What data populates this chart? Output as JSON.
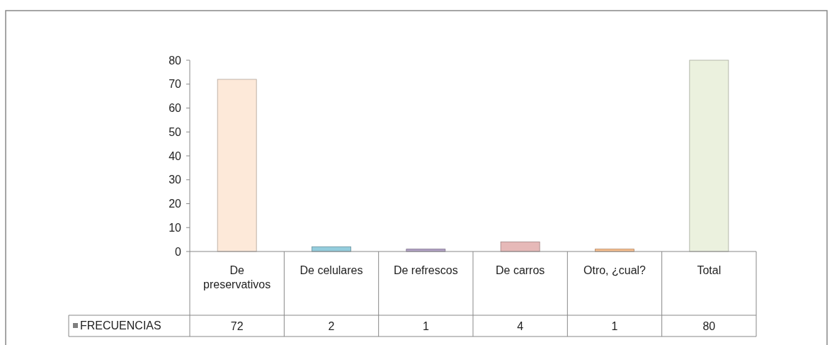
{
  "chart_data": {
    "type": "bar",
    "categories": [
      "De preservativos",
      "De celulares",
      "De refrescos",
      "De carros",
      "Otro, ¿cual?",
      "Total"
    ],
    "series": [
      {
        "name": "FRECUENCIAS",
        "color": "#7f7f7f",
        "colors": [
          "#fde9d9",
          "#93cddd",
          "#b3a2c7",
          "#e6b9b8",
          "#fac08f",
          "#ebf1de"
        ],
        "values": [
          72,
          2,
          1,
          4,
          1,
          80
        ]
      }
    ],
    "ylim": [
      0,
      80
    ],
    "yticks": [
      0,
      10,
      20,
      30,
      40,
      50,
      60,
      70,
      80
    ],
    "data_labels": true,
    "legend": "bottom"
  }
}
